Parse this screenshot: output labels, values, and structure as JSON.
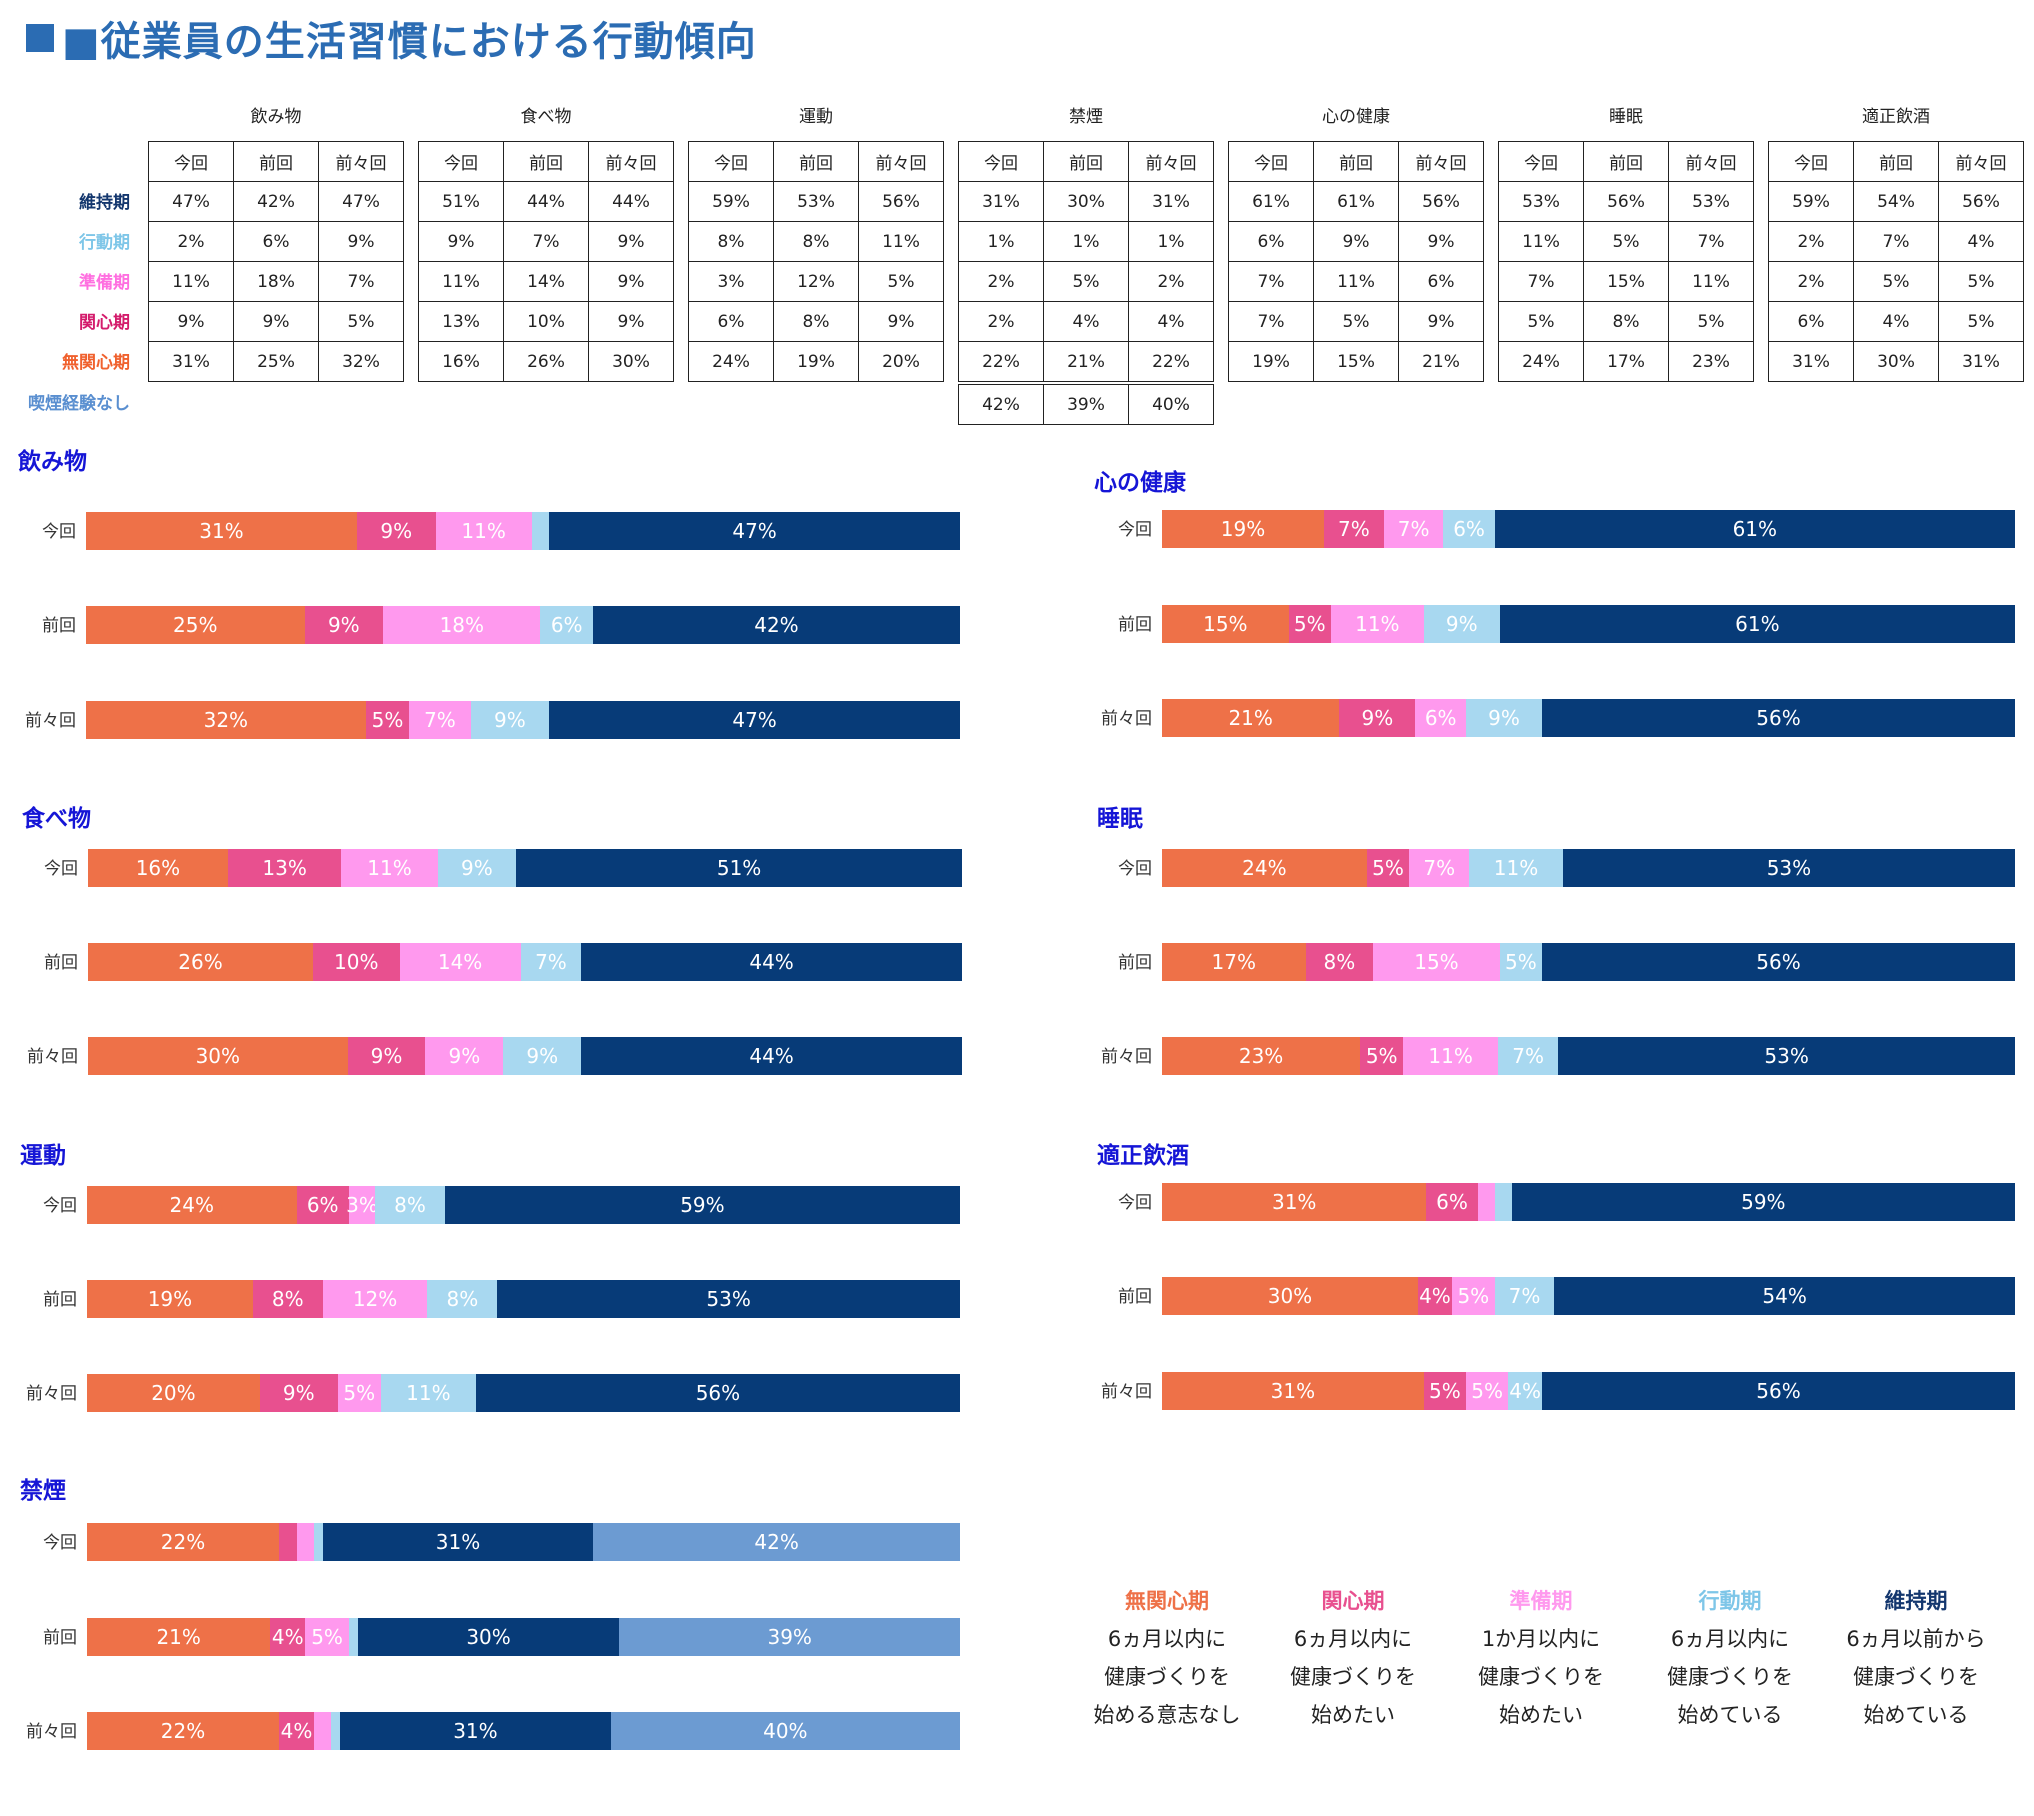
{
  "title": "■従業員の生活習慣における行動傾向",
  "colors": {
    "無関心期": "#ee7148",
    "関心期": "#e8508f",
    "準備期": "#ff99ee",
    "行動期": "#a8d8f0",
    "維持期": "#073b78",
    "喫煙経験なし": "#6c9bd2"
  },
  "row_label_colors": [
    "#14376e",
    "#7ec6e8",
    "#ff6fe0",
    "#d41c6c",
    "#f0612e",
    "#5a8fd0"
  ],
  "row_labels": [
    "維持期",
    "行動期",
    "準備期",
    "関心期",
    "無関心期",
    "喫煙経験なし"
  ],
  "col_headers": [
    "今回",
    "前回",
    "前々回"
  ],
  "table": [
    {
      "name": "飲み物",
      "rows": [
        [
          "47%",
          "42%",
          "47%"
        ],
        [
          "2%",
          "6%",
          "9%"
        ],
        [
          "11%",
          "18%",
          "7%"
        ],
        [
          "9%",
          "9%",
          "5%"
        ],
        [
          "31%",
          "25%",
          "32%"
        ]
      ]
    },
    {
      "name": "食べ物",
      "rows": [
        [
          "51%",
          "44%",
          "44%"
        ],
        [
          "9%",
          "7%",
          "9%"
        ],
        [
          "11%",
          "14%",
          "9%"
        ],
        [
          "13%",
          "10%",
          "9%"
        ],
        [
          "16%",
          "26%",
          "30%"
        ]
      ]
    },
    {
      "name": "運動",
      "rows": [
        [
          "59%",
          "53%",
          "56%"
        ],
        [
          "8%",
          "8%",
          "11%"
        ],
        [
          "3%",
          "12%",
          "5%"
        ],
        [
          "6%",
          "8%",
          "9%"
        ],
        [
          "24%",
          "19%",
          "20%"
        ]
      ]
    },
    {
      "name": "禁煙",
      "rows": [
        [
          "31%",
          "30%",
          "31%"
        ],
        [
          "1%",
          "1%",
          "1%"
        ],
        [
          "2%",
          "5%",
          "2%"
        ],
        [
          "2%",
          "4%",
          "4%"
        ],
        [
          "22%",
          "21%",
          "22%"
        ],
        [
          "42%",
          "39%",
          "40%"
        ]
      ]
    },
    {
      "name": "心の健康",
      "rows": [
        [
          "61%",
          "61%",
          "56%"
        ],
        [
          "6%",
          "9%",
          "9%"
        ],
        [
          "7%",
          "11%",
          "6%"
        ],
        [
          "7%",
          "5%",
          "9%"
        ],
        [
          "19%",
          "15%",
          "21%"
        ]
      ]
    },
    {
      "name": "睡眠",
      "rows": [
        [
          "53%",
          "56%",
          "53%"
        ],
        [
          "11%",
          "5%",
          "7%"
        ],
        [
          "7%",
          "15%",
          "11%"
        ],
        [
          "5%",
          "8%",
          "5%"
        ],
        [
          "24%",
          "17%",
          "23%"
        ]
      ]
    },
    {
      "name": "適正飲酒",
      "rows": [
        [
          "59%",
          "54%",
          "56%"
        ],
        [
          "2%",
          "7%",
          "4%"
        ],
        [
          "2%",
          "5%",
          "5%"
        ],
        [
          "6%",
          "4%",
          "5%"
        ],
        [
          "31%",
          "30%",
          "31%"
        ]
      ]
    }
  ],
  "chart_data": [
    {
      "type": "bar",
      "orientation": "horizontal",
      "stacked": true,
      "title": "飲み物",
      "categories": [
        "今回",
        "前回",
        "前々回"
      ],
      "series": [
        {
          "name": "無関心期",
          "values": [
            31,
            25,
            32
          ]
        },
        {
          "name": "関心期",
          "values": [
            9,
            9,
            5
          ]
        },
        {
          "name": "準備期",
          "values": [
            11,
            18,
            7
          ]
        },
        {
          "name": "行動期",
          "values": [
            2,
            6,
            9
          ]
        },
        {
          "name": "維持期",
          "values": [
            47,
            42,
            47
          ]
        }
      ]
    },
    {
      "type": "bar",
      "orientation": "horizontal",
      "stacked": true,
      "title": "食べ物",
      "categories": [
        "今回",
        "前回",
        "前々回"
      ],
      "series": [
        {
          "name": "無関心期",
          "values": [
            16,
            26,
            30
          ]
        },
        {
          "name": "関心期",
          "values": [
            13,
            10,
            9
          ]
        },
        {
          "name": "準備期",
          "values": [
            11,
            14,
            9
          ]
        },
        {
          "name": "行動期",
          "values": [
            9,
            7,
            9
          ]
        },
        {
          "name": "維持期",
          "values": [
            51,
            44,
            44
          ]
        }
      ]
    },
    {
      "type": "bar",
      "orientation": "horizontal",
      "stacked": true,
      "title": "運動",
      "categories": [
        "今回",
        "前回",
        "前々回"
      ],
      "series": [
        {
          "name": "無関心期",
          "values": [
            24,
            19,
            20
          ]
        },
        {
          "name": "関心期",
          "values": [
            6,
            8,
            9
          ]
        },
        {
          "name": "準備期",
          "values": [
            3,
            12,
            5
          ]
        },
        {
          "name": "行動期",
          "values": [
            8,
            8,
            11
          ]
        },
        {
          "name": "維持期",
          "values": [
            59,
            53,
            56
          ]
        }
      ]
    },
    {
      "type": "bar",
      "orientation": "horizontal",
      "stacked": true,
      "title": "禁煙",
      "categories": [
        "今回",
        "前回",
        "前々回"
      ],
      "series": [
        {
          "name": "無関心期",
          "values": [
            22,
            21,
            22
          ]
        },
        {
          "name": "関心期",
          "values": [
            2,
            4,
            4
          ]
        },
        {
          "name": "準備期",
          "values": [
            2,
            5,
            2
          ]
        },
        {
          "name": "行動期",
          "values": [
            1,
            1,
            1
          ]
        },
        {
          "name": "維持期",
          "values": [
            31,
            30,
            31
          ]
        },
        {
          "name": "喫煙経験なし",
          "values": [
            42,
            39,
            40
          ]
        }
      ]
    },
    {
      "type": "bar",
      "orientation": "horizontal",
      "stacked": true,
      "title": "心の健康",
      "categories": [
        "今回",
        "前回",
        "前々回"
      ],
      "series": [
        {
          "name": "無関心期",
          "values": [
            19,
            15,
            21
          ]
        },
        {
          "name": "関心期",
          "values": [
            7,
            5,
            9
          ]
        },
        {
          "name": "準備期",
          "values": [
            7,
            11,
            6
          ]
        },
        {
          "name": "行動期",
          "values": [
            6,
            9,
            9
          ]
        },
        {
          "name": "維持期",
          "values": [
            61,
            61,
            56
          ]
        }
      ]
    },
    {
      "type": "bar",
      "orientation": "horizontal",
      "stacked": true,
      "title": "睡眠",
      "categories": [
        "今回",
        "前回",
        "前々回"
      ],
      "series": [
        {
          "name": "無関心期",
          "values": [
            24,
            17,
            23
          ]
        },
        {
          "name": "関心期",
          "values": [
            5,
            8,
            5
          ]
        },
        {
          "name": "準備期",
          "values": [
            7,
            15,
            11
          ]
        },
        {
          "name": "行動期",
          "values": [
            11,
            5,
            7
          ]
        },
        {
          "name": "維持期",
          "values": [
            53,
            56,
            53
          ]
        }
      ]
    },
    {
      "type": "bar",
      "orientation": "horizontal",
      "stacked": true,
      "title": "適正飲酒",
      "categories": [
        "今回",
        "前回",
        "前々回"
      ],
      "series": [
        {
          "name": "無関心期",
          "values": [
            31,
            30,
            31
          ]
        },
        {
          "name": "関心期",
          "values": [
            6,
            4,
            5
          ]
        },
        {
          "name": "準備期",
          "values": [
            2,
            5,
            5
          ]
        },
        {
          "name": "行動期",
          "values": [
            2,
            7,
            4
          ]
        },
        {
          "name": "維持期",
          "values": [
            59,
            54,
            56
          ]
        }
      ]
    }
  ],
  "legend": [
    {
      "name": "無関心期",
      "color": "#ee7148",
      "lines": [
        "6ヵ月以内に",
        "健康づくりを",
        "始める意志なし"
      ]
    },
    {
      "name": "関心期",
      "color": "#e8508f",
      "lines": [
        "6ヵ月以内に",
        "健康づくりを",
        "始めたい"
      ]
    },
    {
      "name": "準備期",
      "color": "#ff99ee",
      "lines": [
        "1か月以内に",
        "健康づくりを",
        "始めたい"
      ]
    },
    {
      "name": "行動期",
      "color": "#7ec6e8",
      "lines": [
        "6ヵ月以内に",
        "健康づくりを",
        "始めている"
      ]
    },
    {
      "name": "維持期",
      "color": "#14376e",
      "lines": [
        "6ヵ月以前から",
        "健康づくりを",
        "始めている"
      ]
    }
  ]
}
